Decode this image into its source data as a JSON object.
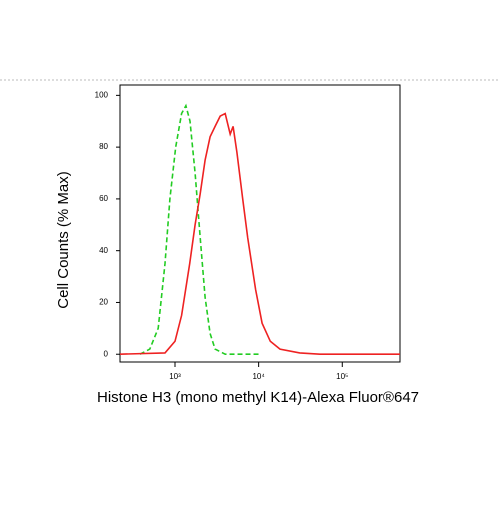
{
  "chart_data": {
    "type": "line",
    "log_x": true,
    "xlabel": "Histone H3 (mono methyl K14)-Alexa Fluor®647",
    "ylabel": "Cell Counts (% Max)",
    "xlim": [
      220,
      490000
    ],
    "ylim": [
      -3,
      104
    ],
    "xticks": [
      {
        "value": 1000,
        "label": "10³"
      },
      {
        "value": 10000,
        "label": "10⁴"
      },
      {
        "value": 100000,
        "label": "10⁵"
      }
    ],
    "yticks": [
      0,
      20,
      40,
      60,
      80,
      100
    ],
    "series": [
      {
        "color": "#22cc22",
        "dashed": true,
        "x": [
          380,
          500,
          630,
          760,
          870,
          1020,
          1200,
          1350,
          1510,
          1740,
          2000,
          2290,
          2630,
          3020,
          3980,
          10000
        ],
        "values": [
          0,
          2,
          10,
          35,
          60,
          80,
          93,
          96,
          90,
          70,
          45,
          22,
          8,
          2,
          0,
          0
        ]
      },
      {
        "color": "#ee2222",
        "dashed": false,
        "x": [
          220,
          760,
          1000,
          1200,
          1500,
          1740,
          2000,
          2290,
          2630,
          3020,
          3470,
          3980,
          4570,
          4950,
          5500,
          6450,
          7400,
          9200,
          11000,
          13800,
          18000,
          31000,
          54000,
          490000
        ],
        "values": [
          0,
          0.5,
          5,
          15,
          35,
          50,
          62,
          75,
          84,
          88,
          92,
          93,
          85,
          88,
          78,
          60,
          45,
          25,
          12,
          5,
          2,
          0.5,
          0,
          0
        ]
      }
    ]
  }
}
